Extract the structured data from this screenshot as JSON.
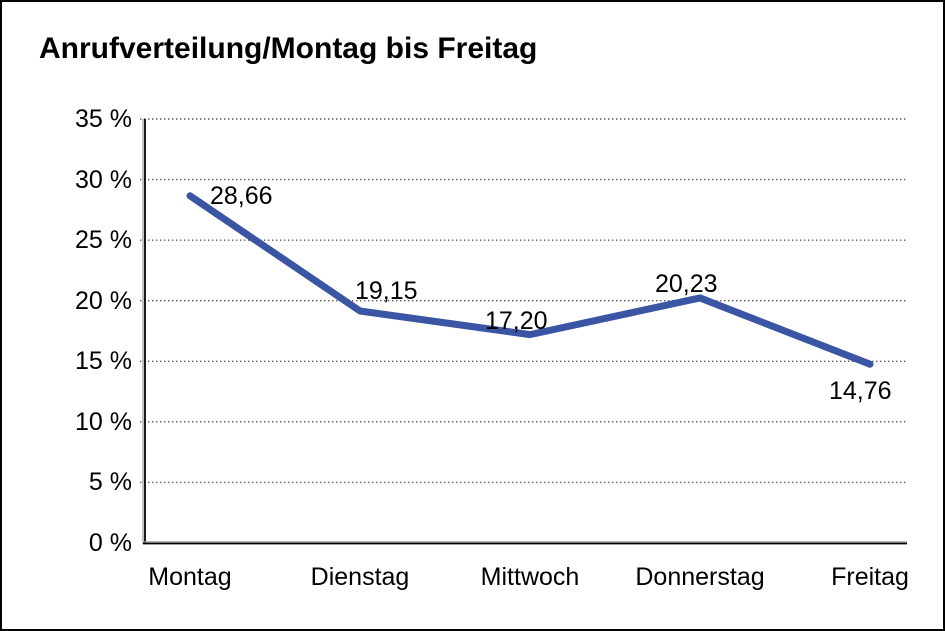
{
  "window": {
    "background_color": "#ffffff",
    "border_color": "#000000"
  },
  "chart": {
    "title": "Anrufverteilung/Montag bis Freitag"
  },
  "chart_data": {
    "type": "line",
    "title": "Anrufverteilung/Montag bis Freitag",
    "categories": [
      "Montag",
      "Dienstag",
      "Mittwoch",
      "Donnerstag",
      "Freitag"
    ],
    "values": [
      28.66,
      19.15,
      17.2,
      20.23,
      14.76
    ],
    "point_labels": [
      "28,66",
      "19,15",
      "17,20",
      "20,23",
      "14,76"
    ],
    "xlabel": "",
    "ylabel": "",
    "ylim": [
      0,
      35
    ],
    "ytick_step": 5,
    "ytick_labels": [
      "0 %",
      "5 %",
      "10 %",
      "15 %",
      "20 %",
      "25 %",
      "30 %",
      "35 %"
    ],
    "grid": "horizontal-dotted",
    "gridline_color": "#595959",
    "axis_color": "#000000",
    "axis_shadow_color": "#9a9a9a",
    "legend_position": "none",
    "series_name": "Anrufverteilung",
    "line_color": "#3a55a4",
    "label_color": "#000000"
  }
}
